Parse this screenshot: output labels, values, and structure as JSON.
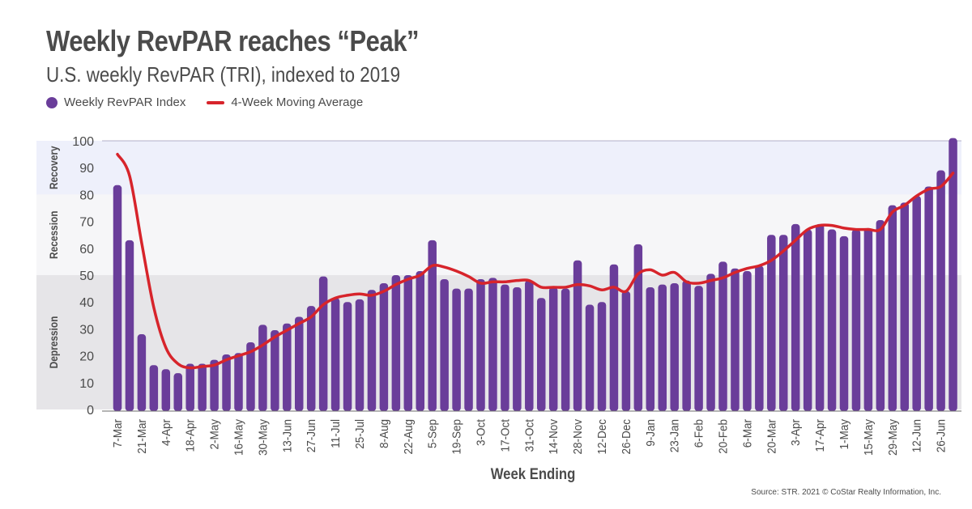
{
  "title": "Weekly RevPAR reaches “Peak”",
  "subtitle": "U.S. weekly RevPAR (TRI), indexed to 2019",
  "legend": {
    "bars_label": "Weekly RevPAR Index",
    "line_label": "4-Week Moving Average"
  },
  "source": "Source: STR. 2021 © CoStar Realty Information, Inc.",
  "colors": {
    "bar": "#6a3d9a",
    "line": "#d7242b",
    "recovery_band": "#eef0fb",
    "recession_band": "#f6f6f8",
    "depression_band": "#e6e5e8"
  },
  "chart_data": {
    "type": "bar",
    "xlabel": "Week Ending",
    "ylabel": "",
    "ylim": [
      0,
      100
    ],
    "yticks": [
      0,
      10,
      20,
      30,
      40,
      50,
      60,
      70,
      80,
      90,
      100
    ],
    "bands": [
      {
        "label": "Recovery",
        "from": 80,
        "to": 100
      },
      {
        "label": "Recession",
        "from": 50,
        "to": 80
      },
      {
        "label": "Depression",
        "from": 0,
        "to": 50
      }
    ],
    "x_tick_labels": [
      {
        "index": 0,
        "label": "7-Mar"
      },
      {
        "index": 2,
        "label": "21-Mar"
      },
      {
        "index": 4,
        "label": "4-Apr"
      },
      {
        "index": 6,
        "label": "18-Apr"
      },
      {
        "index": 8,
        "label": "2-May"
      },
      {
        "index": 10,
        "label": "16-May"
      },
      {
        "index": 12,
        "label": "30-May"
      },
      {
        "index": 14,
        "label": "13-Jun"
      },
      {
        "index": 16,
        "label": "27-Jun"
      },
      {
        "index": 18,
        "label": "11-Jul"
      },
      {
        "index": 20,
        "label": "25-Jul"
      },
      {
        "index": 22,
        "label": "8-Aug"
      },
      {
        "index": 24,
        "label": "22-Aug"
      },
      {
        "index": 26,
        "label": "5-Sep"
      },
      {
        "index": 28,
        "label": "19-Sep"
      },
      {
        "index": 30,
        "label": "3-Oct"
      },
      {
        "index": 32,
        "label": "17-Oct"
      },
      {
        "index": 34,
        "label": "31-Oct"
      },
      {
        "index": 36,
        "label": "14-Nov"
      },
      {
        "index": 38,
        "label": "28-Nov"
      },
      {
        "index": 40,
        "label": "12-Dec"
      },
      {
        "index": 42,
        "label": "26-Dec"
      },
      {
        "index": 44,
        "label": "9-Jan"
      },
      {
        "index": 46,
        "label": "23-Jan"
      },
      {
        "index": 48,
        "label": "6-Feb"
      },
      {
        "index": 50,
        "label": "20-Feb"
      },
      {
        "index": 52,
        "label": "6-Mar"
      },
      {
        "index": 54,
        "label": "20-Mar"
      },
      {
        "index": 56,
        "label": "3-Apr"
      },
      {
        "index": 58,
        "label": "17-Apr"
      },
      {
        "index": 60,
        "label": "1-May"
      },
      {
        "index": 62,
        "label": "15-May"
      },
      {
        "index": 64,
        "label": "29-May"
      },
      {
        "index": 66,
        "label": "12-Jun"
      },
      {
        "index": 68,
        "label": "26-Jun"
      }
    ],
    "series": [
      {
        "name": "Weekly RevPAR Index",
        "type": "bar",
        "values": [
          83.5,
          63,
          28,
          16.5,
          15,
          13.5,
          17,
          17,
          18.5,
          20.5,
          21,
          25,
          31.5,
          29.5,
          32,
          34.5,
          38.5,
          49.5,
          41.5,
          40,
          41,
          44.5,
          47,
          50,
          50,
          51.5,
          63,
          48.5,
          45,
          45,
          48.5,
          49,
          46.5,
          45.5,
          48,
          41.5,
          45.5,
          45,
          55.5,
          39,
          40,
          54,
          44,
          61.5,
          45.5,
          46.5,
          47,
          48,
          46,
          50.5,
          55,
          52.5,
          51.5,
          53.5,
          65,
          65,
          69,
          67,
          69,
          67,
          64.5,
          67,
          67.5,
          70.5,
          76,
          77,
          79.5,
          83,
          89,
          101
        ]
      },
      {
        "name": "4-Week Moving Average",
        "type": "line",
        "values": [
          95,
          87,
          62,
          38,
          23,
          17,
          15.5,
          16,
          16.5,
          18.5,
          20,
          21.5,
          24,
          27,
          29.5,
          32,
          34.5,
          39,
          41.5,
          42.5,
          43,
          42.5,
          44,
          46.5,
          48.5,
          50,
          53.5,
          53,
          51.5,
          49.5,
          47,
          47.5,
          47.5,
          48,
          48,
          45.5,
          45.5,
          45.5,
          46.5,
          46,
          44.5,
          45.5,
          44,
          50.5,
          52,
          50,
          51,
          47.5,
          47,
          48,
          49,
          51,
          52.5,
          53.5,
          55.5,
          59,
          63,
          67,
          68.5,
          68.5,
          67.5,
          67,
          67,
          67,
          73.5,
          76,
          79.5,
          82,
          83,
          88
        ]
      }
    ]
  }
}
